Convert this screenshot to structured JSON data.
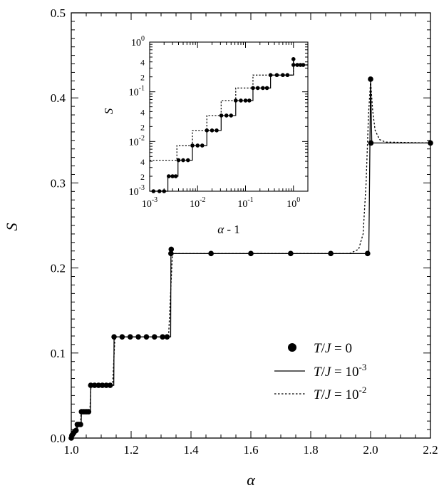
{
  "chart_data": [
    {
      "type": "line",
      "xlabel": "α",
      "ylabel": "S",
      "xlim": [
        1.0,
        2.2
      ],
      "ylim": [
        0.0,
        0.5
      ],
      "x_ticks": [
        "1.0",
        "1.2",
        "1.4",
        "1.6",
        "1.8",
        "2.0",
        "2.2"
      ],
      "y_ticks": [
        "0.0",
        "0.1",
        "0.2",
        "0.3",
        "0.4",
        "0.5"
      ],
      "grid": false,
      "legend_position": "bottom-right",
      "series": [
        {
          "name": "T/J = 0",
          "style": "dots",
          "points": [
            [
              1.0,
              0.0
            ],
            [
              1.002,
              0.003
            ],
            [
              1.004,
              0.004
            ],
            [
              1.008,
              0.006
            ],
            [
              1.012,
              0.008
            ],
            [
              1.016,
              0.009
            ],
            [
              1.02,
              0.016
            ],
            [
              1.025,
              0.016
            ],
            [
              1.031,
              0.016
            ],
            [
              1.034,
              0.031
            ],
            [
              1.04,
              0.031
            ],
            [
              1.046,
              0.031
            ],
            [
              1.052,
              0.031
            ],
            [
              1.058,
              0.031
            ],
            [
              1.065,
              0.062
            ],
            [
              1.078,
              0.062
            ],
            [
              1.091,
              0.062
            ],
            [
              1.104,
              0.062
            ],
            [
              1.117,
              0.062
            ],
            [
              1.13,
              0.062
            ],
            [
              1.143,
              0.119
            ],
            [
              1.17,
              0.119
            ],
            [
              1.197,
              0.119
            ],
            [
              1.224,
              0.119
            ],
            [
              1.251,
              0.119
            ],
            [
              1.278,
              0.119
            ],
            [
              1.305,
              0.119
            ],
            [
              1.32,
              0.119
            ],
            [
              1.333,
              0.217
            ],
            [
              1.334,
              0.222
            ],
            [
              1.467,
              0.217
            ],
            [
              1.6,
              0.217
            ],
            [
              1.733,
              0.217
            ],
            [
              1.867,
              0.217
            ],
            [
              1.99,
              0.217
            ],
            [
              2.0,
              0.422
            ],
            [
              2.001,
              0.347
            ],
            [
              2.2,
              0.347
            ]
          ]
        },
        {
          "name": "T/J = 10⁻³",
          "style": "solid",
          "points": [
            [
              1.0,
              0.0
            ],
            [
              1.015,
              0.009
            ],
            [
              1.02,
              0.009
            ],
            [
              1.021,
              0.016
            ],
            [
              1.033,
              0.016
            ],
            [
              1.034,
              0.031
            ],
            [
              1.064,
              0.031
            ],
            [
              1.065,
              0.062
            ],
            [
              1.142,
              0.062
            ],
            [
              1.143,
              0.119
            ],
            [
              1.332,
              0.119
            ],
            [
              1.333,
              0.217
            ],
            [
              1.994,
              0.217
            ],
            [
              2.0,
              0.422
            ],
            [
              2.004,
              0.347
            ],
            [
              2.2,
              0.347
            ]
          ]
        },
        {
          "name": "T/J = 10⁻²",
          "style": "dashed",
          "points": [
            [
              1.0,
              0.0
            ],
            [
              1.013,
              0.009
            ],
            [
              1.019,
              0.014
            ],
            [
              1.031,
              0.016
            ],
            [
              1.033,
              0.031
            ],
            [
              1.062,
              0.031
            ],
            [
              1.066,
              0.062
            ],
            [
              1.138,
              0.062
            ],
            [
              1.146,
              0.119
            ],
            [
              1.325,
              0.119
            ],
            [
              1.338,
              0.217
            ],
            [
              1.93,
              0.217
            ],
            [
              1.96,
              0.222
            ],
            [
              1.975,
              0.24
            ],
            [
              1.985,
              0.3
            ],
            [
              1.993,
              0.38
            ],
            [
              2.0,
              0.42
            ],
            [
              2.007,
              0.385
            ],
            [
              2.015,
              0.362
            ],
            [
              2.03,
              0.351
            ],
            [
              2.05,
              0.348
            ],
            [
              2.2,
              0.347
            ]
          ]
        }
      ]
    },
    {
      "type": "line",
      "xlabel": "α - 1",
      "ylabel": "S",
      "log_scale": true,
      "xlim": [
        0.001,
        2.0
      ],
      "ylim": [
        0.001,
        1.0
      ],
      "x_ticks": [
        "10-3",
        "10-2",
        "10-1",
        "100"
      ],
      "y_ticks": [
        "10-3",
        "10-2",
        "10-1",
        "100"
      ],
      "y_minor_labels": [
        {
          "value": 0.002,
          "label": "2"
        },
        {
          "value": 0.004,
          "label": "4"
        },
        {
          "value": 0.02,
          "label": "2"
        },
        {
          "value": 0.04,
          "label": "4"
        },
        {
          "value": 0.2,
          "label": "2"
        },
        {
          "value": 0.4,
          "label": "4"
        }
      ],
      "series": [
        {
          "name": "T/J = 0",
          "style": "dots",
          "points": [
            [
              0.0012,
              0.001
            ],
            [
              0.0016,
              0.001
            ],
            [
              0.002,
              0.001
            ],
            [
              0.0025,
              0.002
            ],
            [
              0.003,
              0.002
            ],
            [
              0.0035,
              0.002
            ],
            [
              0.004,
              0.0042
            ],
            [
              0.005,
              0.0042
            ],
            [
              0.0063,
              0.0042
            ],
            [
              0.0078,
              0.0083
            ],
            [
              0.01,
              0.0083
            ],
            [
              0.0125,
              0.0083
            ],
            [
              0.0156,
              0.0167
            ],
            [
              0.02,
              0.0167
            ],
            [
              0.025,
              0.0167
            ],
            [
              0.03125,
              0.0333
            ],
            [
              0.04,
              0.0333
            ],
            [
              0.05,
              0.0333
            ],
            [
              0.0625,
              0.0667
            ],
            [
              0.08,
              0.0667
            ],
            [
              0.1,
              0.0667
            ],
            [
              0.12,
              0.0667
            ],
            [
              0.143,
              0.119
            ],
            [
              0.18,
              0.119
            ],
            [
              0.23,
              0.119
            ],
            [
              0.28,
              0.119
            ],
            [
              0.333,
              0.217
            ],
            [
              0.45,
              0.217
            ],
            [
              0.6,
              0.217
            ],
            [
              0.75,
              0.217
            ],
            [
              1.0,
              0.455
            ],
            [
              1.0,
              0.347
            ],
            [
              1.2,
              0.347
            ],
            [
              1.4,
              0.347
            ],
            [
              1.6,
              0.347
            ]
          ]
        },
        {
          "name": "T/J = 10⁻³",
          "style": "solid",
          "points": [
            [
              0.001,
              0.001
            ],
            [
              0.0024,
              0.001
            ],
            [
              0.0024,
              0.002
            ],
            [
              0.0039,
              0.002
            ],
            [
              0.0039,
              0.0042
            ],
            [
              0.0078,
              0.0042
            ],
            [
              0.0078,
              0.0083
            ],
            [
              0.0156,
              0.0083
            ],
            [
              0.0156,
              0.0167
            ],
            [
              0.031,
              0.0167
            ],
            [
              0.031,
              0.0333
            ],
            [
              0.0625,
              0.0333
            ],
            [
              0.0625,
              0.0667
            ],
            [
              0.143,
              0.0667
            ],
            [
              0.143,
              0.119
            ],
            [
              0.333,
              0.119
            ],
            [
              0.333,
              0.217
            ],
            [
              1.0,
              0.217
            ],
            [
              1.0,
              0.455
            ],
            [
              1.0,
              0.347
            ],
            [
              2.0,
              0.347
            ]
          ]
        },
        {
          "name": "T/J = 10⁻²",
          "style": "dashed",
          "points": [
            [
              0.001,
              0.0042
            ],
            [
              0.0037,
              0.0042
            ],
            [
              0.0037,
              0.0083
            ],
            [
              0.0078,
              0.0083
            ],
            [
              0.0078,
              0.0167
            ],
            [
              0.0156,
              0.0167
            ],
            [
              0.0156,
              0.0333
            ],
            [
              0.031,
              0.0333
            ],
            [
              0.031,
              0.0667
            ],
            [
              0.0625,
              0.0667
            ],
            [
              0.0625,
              0.119
            ],
            [
              0.143,
              0.119
            ],
            [
              0.143,
              0.217
            ],
            [
              0.333,
              0.217
            ],
            [
              0.333,
              0.217
            ],
            [
              1.0,
              0.217
            ],
            [
              1.0,
              0.455
            ],
            [
              1.0,
              0.347
            ],
            [
              2.0,
              0.347
            ]
          ]
        }
      ]
    }
  ]
}
